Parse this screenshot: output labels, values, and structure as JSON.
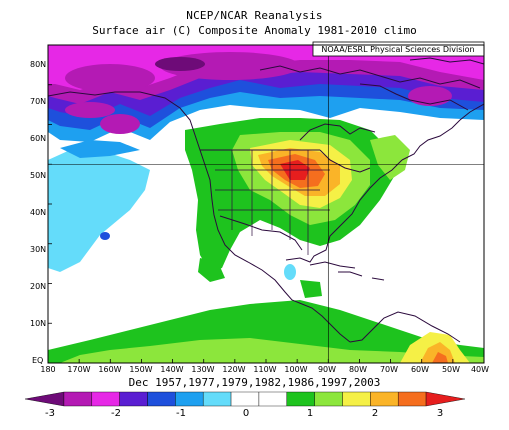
{
  "title": "NCEP/NCAR Reanalysis",
  "subtitle": "Surface air (C) Composite Anomaly 1981-2010 climo",
  "credit": "NOAA/ESRL Physical Sciences Division",
  "lat_labels": [
    "80N",
    "70N",
    "60N",
    "50N",
    "40N",
    "30N",
    "20N",
    "10N",
    "EQ"
  ],
  "lon_labels": [
    "180",
    "170W",
    "160W",
    "150W",
    "140W",
    "130W",
    "120W",
    "110W",
    "100W",
    "90W",
    "80W",
    "70W",
    "60W",
    "50W",
    "40W"
  ],
  "dates": "Dec 1957,1977,1979,1982,1986,1997,2003",
  "colorbar": {
    "labels": [
      "-3",
      "-2",
      "-1",
      "0",
      "1",
      "2",
      "3"
    ],
    "colors": [
      "#6e0b78",
      "#b41ab4",
      "#e628e6",
      "#5a1ed2",
      "#1e50dc",
      "#1ea0f0",
      "#64dcfa",
      "#ffffff",
      "#ffffff",
      "#1ec31e",
      "#8ce63c",
      "#f5f046",
      "#fab428",
      "#f56e1e",
      "#e61e1e"
    ]
  }
}
